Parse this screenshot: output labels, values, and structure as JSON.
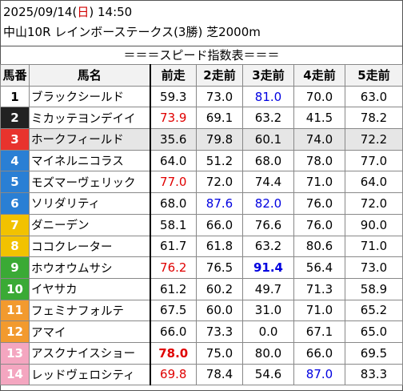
{
  "header": {
    "date": "2025/09/14",
    "weekday_open": "(",
    "weekday": "日",
    "weekday_close": ")",
    "time": "14:50",
    "race_line": "中山10R レインボーステークス(3勝) 芝2000m"
  },
  "title": "＝＝＝スピード指数表＝＝＝",
  "columns": [
    "馬番",
    "馬名",
    "前走",
    "2走前",
    "3走前",
    "4走前",
    "5走前"
  ],
  "colors": {
    "frame": [
      "#ffffff",
      "#222222",
      "#e8332d",
      "#2a7fd4",
      "#f2c200",
      "#3aaa35",
      "#f29a2e",
      "#f4a6c0"
    ]
  },
  "horses": [
    {
      "num": "1",
      "frame": 1,
      "name": "ブラックシールド",
      "v": [
        "59.3",
        "73.0",
        "81.0",
        "70.0",
        "63.0"
      ],
      "style": [
        "",
        "",
        "blue",
        "",
        ""
      ]
    },
    {
      "num": "2",
      "frame": 2,
      "name": "ミカッテヨンデイイ",
      "v": [
        "73.9",
        "69.1",
        "63.2",
        "41.5",
        "78.2"
      ],
      "style": [
        "red",
        "",
        "",
        "",
        ""
      ]
    },
    {
      "num": "3",
      "frame": 3,
      "name": "ホークフィールド",
      "v": [
        "35.6",
        "79.8",
        "60.1",
        "74.0",
        "72.2"
      ],
      "style": [
        "",
        "",
        "",
        "",
        ""
      ],
      "highlight": true
    },
    {
      "num": "4",
      "frame": 4,
      "name": "マイネルニコラス",
      "v": [
        "64.0",
        "51.2",
        "68.0",
        "78.0",
        "77.0"
      ],
      "style": [
        "",
        "",
        "",
        "",
        ""
      ]
    },
    {
      "num": "5",
      "frame": 4,
      "name": "モズマーヴェリック",
      "v": [
        "77.0",
        "72.0",
        "74.4",
        "71.0",
        "64.0"
      ],
      "style": [
        "red",
        "",
        "",
        "",
        ""
      ]
    },
    {
      "num": "6",
      "frame": 4,
      "name": "ソリダリティ",
      "v": [
        "68.0",
        "87.6",
        "82.0",
        "76.0",
        "72.0"
      ],
      "style": [
        "",
        "blue",
        "blue",
        "",
        ""
      ]
    },
    {
      "num": "7",
      "frame": 5,
      "name": "ダニーデン",
      "v": [
        "58.1",
        "66.0",
        "76.6",
        "76.0",
        "90.0"
      ],
      "style": [
        "",
        "",
        "",
        "",
        ""
      ]
    },
    {
      "num": "8",
      "frame": 5,
      "name": "ココクレーター",
      "v": [
        "61.7",
        "61.8",
        "63.2",
        "80.6",
        "71.0"
      ],
      "style": [
        "",
        "",
        "",
        "",
        ""
      ]
    },
    {
      "num": "9",
      "frame": 6,
      "name": "ホウオウムサシ",
      "v": [
        "76.2",
        "76.5",
        "91.4",
        "56.4",
        "73.0"
      ],
      "style": [
        "red",
        "",
        "bluebold",
        "",
        ""
      ]
    },
    {
      "num": "10",
      "frame": 6,
      "name": "イヤサカ",
      "v": [
        "61.2",
        "60.2",
        "49.7",
        "71.3",
        "58.9"
      ],
      "style": [
        "",
        "",
        "",
        "",
        ""
      ]
    },
    {
      "num": "11",
      "frame": 7,
      "name": "フェミナフォルテ",
      "v": [
        "67.5",
        "60.0",
        "31.0",
        "71.0",
        "65.2"
      ],
      "style": [
        "",
        "",
        "",
        "",
        ""
      ]
    },
    {
      "num": "12",
      "frame": 7,
      "name": "アマイ",
      "v": [
        "66.0",
        "73.3",
        "0.0",
        "67.1",
        "65.0"
      ],
      "style": [
        "",
        "",
        "",
        "",
        ""
      ]
    },
    {
      "num": "13",
      "frame": 8,
      "name": "アスクナイスショー",
      "v": [
        "78.0",
        "75.0",
        "80.0",
        "66.0",
        "69.5"
      ],
      "style": [
        "redbold",
        "",
        "",
        "",
        ""
      ]
    },
    {
      "num": "14",
      "frame": 8,
      "name": "レッドヴェロシティ",
      "v": [
        "69.8",
        "78.4",
        "54.6",
        "87.0",
        "83.3"
      ],
      "style": [
        "red",
        "",
        "",
        "blue",
        ""
      ]
    }
  ]
}
